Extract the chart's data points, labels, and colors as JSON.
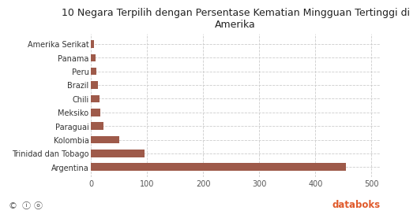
{
  "title": "10 Negara Terpilih dengan Persentase Kematian Mingguan Tertinggi di\nAmerika",
  "categories": [
    "Amerika Serikat",
    "Panama",
    "Peru",
    "Brazil",
    "Chili",
    "Meksiko",
    "Paraguai",
    "Kolombia",
    "Trinidad dan Tobago",
    "Argentina"
  ],
  "values": [
    5,
    8,
    10,
    12,
    15,
    17,
    22,
    50,
    95,
    455
  ],
  "bar_color": "#9e5a4a",
  "background_color": "#ffffff",
  "plot_bg_color": "#ffffff",
  "xticks": [
    0,
    100,
    200,
    300,
    400,
    500
  ],
  "xlim": [
    0,
    515
  ],
  "title_fontsize": 9,
  "tick_fontsize": 7,
  "grid_color": "#cccccc",
  "footer_text": "© ⓘ ⓞ",
  "brand_text": " databoks",
  "brand_color": "#e05a2b"
}
